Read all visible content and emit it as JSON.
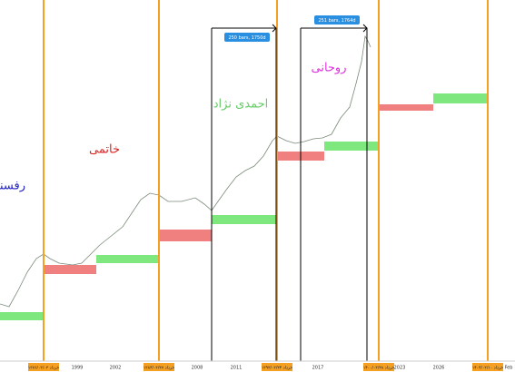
{
  "presidents": [
    "رفسنجانی",
    "خاتمی",
    "احمدی نژاد",
    "روحانی"
  ],
  "measurements": [
    "250 bars, 1750d",
    "251 bars, 1764d"
  ],
  "x_axis": {
    "labels": [
      "1999",
      "2002",
      "2008",
      "2011",
      "2017",
      "2023",
      "2026",
      "Feb"
    ]
  },
  "date_labels": [
    "۱۳۷۶/۰۳/۰۲ خرداد",
    "۱۳۸۴/۰۳/۲۷ خرداد",
    "۱۳۹۲/۰۳/۲۴ خرداد",
    "۱۴۰۰/۰۳/۲۸ خرداد",
    "۱۴۰۴/۰۳/۱۰ خرداد"
  ]
}
